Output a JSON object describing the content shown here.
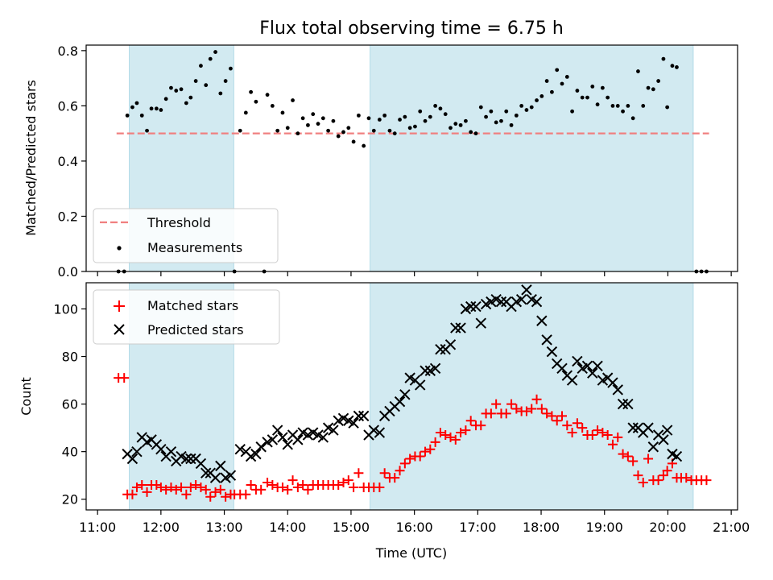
{
  "chart_data": {
    "title": "Flux total observing time = 6.75 h",
    "xlabel": "Time (UTC)",
    "x_ticks": [
      "11:00",
      "12:00",
      "13:00",
      "14:00",
      "15:00",
      "16:00",
      "17:00",
      "18:00",
      "19:00",
      "20:00",
      "21:00"
    ],
    "xlim_hours": [
      10.82,
      21.1
    ],
    "shaded_intervals_hours": [
      [
        11.5,
        13.15
      ],
      [
        15.3,
        20.4
      ]
    ],
    "colors": {
      "shade": "#add8e6",
      "threshold": "#f08080",
      "matched": "#ff0000",
      "predicted": "#000000",
      "measurement": "#000000"
    },
    "top": {
      "type": "scatter",
      "ylabel": "Matched/Predicted stars",
      "ylim": [
        0,
        0.82
      ],
      "y_ticks": [
        "0.0",
        "0.2",
        "0.4",
        "0.6",
        "0.8"
      ],
      "threshold": 0.5,
      "threshold_x_hours": [
        11.3,
        20.65
      ],
      "legend": {
        "threshold_label": "Threshold",
        "measurements_label": "Measurements"
      },
      "measurements": [
        [
          11.33,
          0
        ],
        [
          11.42,
          0
        ],
        [
          11.47,
          0.565
        ],
        [
          11.55,
          0.595
        ],
        [
          11.62,
          0.61
        ],
        [
          11.7,
          0.565
        ],
        [
          11.78,
          0.51
        ],
        [
          11.85,
          0.59
        ],
        [
          11.93,
          0.59
        ],
        [
          12.0,
          0.585
        ],
        [
          12.08,
          0.625
        ],
        [
          12.16,
          0.665
        ],
        [
          12.24,
          0.655
        ],
        [
          12.32,
          0.66
        ],
        [
          12.4,
          0.61
        ],
        [
          12.47,
          0.63
        ],
        [
          12.55,
          0.69
        ],
        [
          12.63,
          0.745
        ],
        [
          12.71,
          0.675
        ],
        [
          12.78,
          0.77
        ],
        [
          12.86,
          0.795
        ],
        [
          12.94,
          0.645
        ],
        [
          13.02,
          0.69
        ],
        [
          13.1,
          0.735
        ],
        [
          13.16,
          0
        ],
        [
          13.25,
          0.51
        ],
        [
          13.34,
          0.575
        ],
        [
          13.42,
          0.65
        ],
        [
          13.5,
          0.615
        ],
        [
          13.63,
          0
        ],
        [
          13.68,
          0.64
        ],
        [
          13.76,
          0.6
        ],
        [
          13.84,
          0.51
        ],
        [
          13.92,
          0.575
        ],
        [
          14.0,
          0.52
        ],
        [
          14.08,
          0.62
        ],
        [
          14.16,
          0.5
        ],
        [
          14.24,
          0.555
        ],
        [
          14.32,
          0.53
        ],
        [
          14.4,
          0.57
        ],
        [
          14.48,
          0.535
        ],
        [
          14.56,
          0.555
        ],
        [
          14.64,
          0.51
        ],
        [
          14.72,
          0.545
        ],
        [
          14.8,
          0.49
        ],
        [
          14.88,
          0.505
        ],
        [
          14.96,
          0.52
        ],
        [
          15.04,
          0.47
        ],
        [
          15.12,
          0.565
        ],
        [
          15.2,
          0.455
        ],
        [
          15.28,
          0.555
        ],
        [
          15.36,
          0.51
        ],
        [
          15.45,
          0.55
        ],
        [
          15.53,
          0.565
        ],
        [
          15.61,
          0.51
        ],
        [
          15.69,
          0.5
        ],
        [
          15.77,
          0.55
        ],
        [
          15.85,
          0.56
        ],
        [
          15.93,
          0.52
        ],
        [
          16.01,
          0.525
        ],
        [
          16.09,
          0.58
        ],
        [
          16.17,
          0.545
        ],
        [
          16.25,
          0.56
        ],
        [
          16.33,
          0.6
        ],
        [
          16.41,
          0.59
        ],
        [
          16.49,
          0.57
        ],
        [
          16.57,
          0.52
        ],
        [
          16.65,
          0.535
        ],
        [
          16.73,
          0.53
        ],
        [
          16.81,
          0.545
        ],
        [
          16.89,
          0.505
        ],
        [
          16.97,
          0.5
        ],
        [
          17.05,
          0.595
        ],
        [
          17.13,
          0.56
        ],
        [
          17.21,
          0.58
        ],
        [
          17.29,
          0.54
        ],
        [
          17.37,
          0.545
        ],
        [
          17.45,
          0.58
        ],
        [
          17.53,
          0.53
        ],
        [
          17.61,
          0.565
        ],
        [
          17.69,
          0.6
        ],
        [
          17.77,
          0.585
        ],
        [
          17.85,
          0.595
        ],
        [
          17.93,
          0.62
        ],
        [
          18.01,
          0.635
        ],
        [
          18.09,
          0.69
        ],
        [
          18.17,
          0.65
        ],
        [
          18.25,
          0.73
        ],
        [
          18.33,
          0.68
        ],
        [
          18.41,
          0.705
        ],
        [
          18.49,
          0.58
        ],
        [
          18.57,
          0.655
        ],
        [
          18.65,
          0.63
        ],
        [
          18.73,
          0.63
        ],
        [
          18.81,
          0.67
        ],
        [
          18.89,
          0.605
        ],
        [
          18.97,
          0.665
        ],
        [
          19.05,
          0.63
        ],
        [
          19.13,
          0.6
        ],
        [
          19.21,
          0.6
        ],
        [
          19.29,
          0.58
        ],
        [
          19.37,
          0.6
        ],
        [
          19.45,
          0.555
        ],
        [
          19.53,
          0.725
        ],
        [
          19.61,
          0.6
        ],
        [
          19.69,
          0.665
        ],
        [
          19.77,
          0.66
        ],
        [
          19.85,
          0.69
        ],
        [
          19.93,
          0.77
        ],
        [
          19.99,
          0.595
        ],
        [
          20.07,
          0.745
        ],
        [
          20.14,
          0.74
        ],
        [
          20.45,
          0
        ],
        [
          20.53,
          0
        ],
        [
          20.61,
          0
        ]
      ]
    },
    "bottom": {
      "type": "scatter",
      "ylabel": "Count",
      "ylim": [
        15.5,
        111
      ],
      "y_ticks": [
        "20",
        "40",
        "60",
        "80",
        "100"
      ],
      "legend": {
        "matched_label": "Matched stars",
        "predicted_label": "Predicted stars"
      },
      "matched": [
        [
          11.33,
          71
        ],
        [
          11.42,
          71
        ],
        [
          11.47,
          22
        ],
        [
          11.55,
          22
        ],
        [
          11.62,
          25
        ],
        [
          11.7,
          26
        ],
        [
          11.78,
          23
        ],
        [
          11.85,
          26
        ],
        [
          11.93,
          26
        ],
        [
          12.0,
          25
        ],
        [
          12.08,
          24
        ],
        [
          12.16,
          25
        ],
        [
          12.24,
          24
        ],
        [
          12.32,
          25
        ],
        [
          12.4,
          22
        ],
        [
          12.47,
          25
        ],
        [
          12.55,
          26
        ],
        [
          12.63,
          25
        ],
        [
          12.71,
          24
        ],
        [
          12.78,
          21
        ],
        [
          12.86,
          23
        ],
        [
          12.94,
          24
        ],
        [
          13.02,
          21
        ],
        [
          13.1,
          22
        ],
        [
          13.16,
          22
        ],
        [
          13.25,
          22
        ],
        [
          13.34,
          22
        ],
        [
          13.42,
          26
        ],
        [
          13.5,
          24
        ],
        [
          13.58,
          24
        ],
        [
          13.68,
          27
        ],
        [
          13.76,
          26
        ],
        [
          13.84,
          25
        ],
        [
          13.92,
          25
        ],
        [
          14.0,
          24
        ],
        [
          14.08,
          28
        ],
        [
          14.16,
          25
        ],
        [
          14.24,
          26
        ],
        [
          14.32,
          24
        ],
        [
          14.4,
          26
        ],
        [
          14.48,
          26
        ],
        [
          14.56,
          26
        ],
        [
          14.64,
          26
        ],
        [
          14.72,
          26
        ],
        [
          14.8,
          26
        ],
        [
          14.88,
          27
        ],
        [
          14.96,
          28
        ],
        [
          15.04,
          25
        ],
        [
          15.12,
          31
        ],
        [
          15.2,
          25
        ],
        [
          15.28,
          25
        ],
        [
          15.36,
          25
        ],
        [
          15.45,
          25
        ],
        [
          15.53,
          31
        ],
        [
          15.61,
          29
        ],
        [
          15.69,
          29
        ],
        [
          15.77,
          32
        ],
        [
          15.85,
          35
        ],
        [
          15.93,
          37
        ],
        [
          16.01,
          38
        ],
        [
          16.09,
          38
        ],
        [
          16.17,
          40
        ],
        [
          16.25,
          41
        ],
        [
          16.33,
          44
        ],
        [
          16.41,
          48
        ],
        [
          16.49,
          47
        ],
        [
          16.57,
          46
        ],
        [
          16.65,
          45
        ],
        [
          16.73,
          48
        ],
        [
          16.81,
          49
        ],
        [
          16.89,
          53
        ],
        [
          16.97,
          51
        ],
        [
          17.05,
          51
        ],
        [
          17.13,
          56
        ],
        [
          17.21,
          56
        ],
        [
          17.29,
          60
        ],
        [
          17.37,
          56
        ],
        [
          17.45,
          56
        ],
        [
          17.53,
          60
        ],
        [
          17.61,
          58
        ],
        [
          17.69,
          57
        ],
        [
          17.77,
          57
        ],
        [
          17.85,
          58
        ],
        [
          17.93,
          62
        ],
        [
          18.01,
          58
        ],
        [
          18.09,
          56
        ],
        [
          18.17,
          55
        ],
        [
          18.25,
          53
        ],
        [
          18.33,
          55
        ],
        [
          18.41,
          51
        ],
        [
          18.49,
          48
        ],
        [
          18.57,
          52
        ],
        [
          18.65,
          50
        ],
        [
          18.73,
          47
        ],
        [
          18.81,
          47
        ],
        [
          18.89,
          49
        ],
        [
          18.97,
          48
        ],
        [
          19.05,
          47
        ],
        [
          19.13,
          43
        ],
        [
          19.21,
          46
        ],
        [
          19.29,
          39
        ],
        [
          19.37,
          38
        ],
        [
          19.45,
          36
        ],
        [
          19.53,
          30
        ],
        [
          19.61,
          27
        ],
        [
          19.69,
          37
        ],
        [
          19.77,
          28
        ],
        [
          19.85,
          28
        ],
        [
          19.93,
          30
        ],
        [
          19.99,
          32
        ],
        [
          20.07,
          35
        ],
        [
          20.14,
          29
        ],
        [
          20.21,
          29
        ],
        [
          20.29,
          29
        ],
        [
          20.37,
          28
        ],
        [
          20.45,
          28
        ],
        [
          20.53,
          28
        ],
        [
          20.61,
          28
        ]
      ],
      "predicted": [
        [
          11.47,
          39
        ],
        [
          11.55,
          37
        ],
        [
          11.62,
          40
        ],
        [
          11.7,
          46
        ],
        [
          11.78,
          44
        ],
        [
          11.85,
          45
        ],
        [
          11.93,
          43
        ],
        [
          12.0,
          41
        ],
        [
          12.08,
          38
        ],
        [
          12.16,
          40
        ],
        [
          12.24,
          36
        ],
        [
          12.32,
          38
        ],
        [
          12.4,
          37
        ],
        [
          12.47,
          37
        ],
        [
          12.55,
          37
        ],
        [
          12.63,
          35
        ],
        [
          12.71,
          31
        ],
        [
          12.78,
          31
        ],
        [
          12.86,
          29
        ],
        [
          12.94,
          34
        ],
        [
          13.02,
          29
        ],
        [
          13.1,
          30
        ],
        [
          13.25,
          41
        ],
        [
          13.34,
          40
        ],
        [
          13.42,
          38
        ],
        [
          13.5,
          39
        ],
        [
          13.58,
          42
        ],
        [
          13.68,
          44
        ],
        [
          13.76,
          45
        ],
        [
          13.84,
          49
        ],
        [
          13.92,
          46
        ],
        [
          14.0,
          43
        ],
        [
          14.08,
          47
        ],
        [
          14.16,
          45
        ],
        [
          14.24,
          48
        ],
        [
          14.32,
          47
        ],
        [
          14.4,
          48
        ],
        [
          14.48,
          47
        ],
        [
          14.56,
          46
        ],
        [
          14.64,
          50
        ],
        [
          14.72,
          49
        ],
        [
          14.8,
          53
        ],
        [
          14.88,
          54
        ],
        [
          14.96,
          53
        ],
        [
          15.04,
          52
        ],
        [
          15.12,
          55
        ],
        [
          15.2,
          55
        ],
        [
          15.28,
          47
        ],
        [
          15.36,
          49
        ],
        [
          15.45,
          48
        ],
        [
          15.53,
          55
        ],
        [
          15.61,
          57
        ],
        [
          15.69,
          59
        ],
        [
          15.77,
          61
        ],
        [
          15.85,
          64
        ],
        [
          15.93,
          71
        ],
        [
          16.01,
          70
        ],
        [
          16.09,
          68
        ],
        [
          16.17,
          74
        ],
        [
          16.25,
          74
        ],
        [
          16.33,
          75
        ],
        [
          16.41,
          83
        ],
        [
          16.49,
          83
        ],
        [
          16.57,
          85
        ],
        [
          16.65,
          92
        ],
        [
          16.73,
          92
        ],
        [
          16.81,
          100
        ],
        [
          16.89,
          101
        ],
        [
          16.97,
          101
        ],
        [
          17.05,
          94
        ],
        [
          17.13,
          102
        ],
        [
          17.21,
          103
        ],
        [
          17.29,
          104
        ],
        [
          17.37,
          103
        ],
        [
          17.45,
          103
        ],
        [
          17.53,
          101
        ],
        [
          17.61,
          103
        ],
        [
          17.69,
          104
        ],
        [
          17.77,
          108
        ],
        [
          17.85,
          104
        ],
        [
          17.93,
          103
        ],
        [
          18.01,
          95
        ],
        [
          18.09,
          87
        ],
        [
          18.17,
          82
        ],
        [
          18.25,
          77
        ],
        [
          18.33,
          75
        ],
        [
          18.41,
          72
        ],
        [
          18.49,
          70
        ],
        [
          18.57,
          78
        ],
        [
          18.65,
          75
        ],
        [
          18.73,
          76
        ],
        [
          18.81,
          73
        ],
        [
          18.89,
          76
        ],
        [
          18.97,
          70
        ],
        [
          19.05,
          71
        ],
        [
          19.13,
          69
        ],
        [
          19.21,
          66
        ],
        [
          19.29,
          60
        ],
        [
          19.37,
          60
        ],
        [
          19.45,
          50
        ],
        [
          19.53,
          50
        ],
        [
          19.61,
          48
        ],
        [
          19.69,
          50
        ],
        [
          19.77,
          42
        ],
        [
          19.85,
          47
        ],
        [
          19.93,
          45
        ],
        [
          19.99,
          49
        ],
        [
          20.07,
          39
        ],
        [
          20.14,
          38
        ]
      ]
    }
  }
}
